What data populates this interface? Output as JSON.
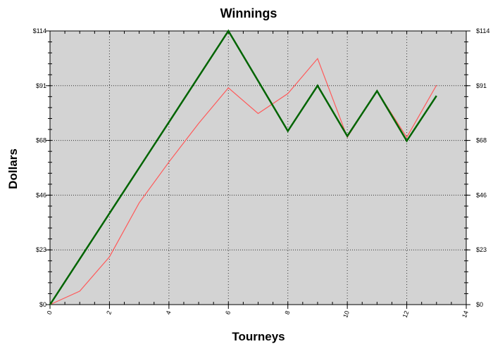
{
  "chart_data": {
    "type": "line",
    "title": "Winnings",
    "xlabel": "Tourneys",
    "ylabel": "Dollars",
    "xlim": [
      0,
      14
    ],
    "ylim": [
      0,
      114
    ],
    "xticks": [
      "0",
      "2",
      "4",
      "6",
      "8",
      "10",
      "12",
      "14"
    ],
    "yticks": [
      "$0",
      "$23",
      "$46",
      "$68",
      "$91",
      "$114"
    ],
    "ytick_values": [
      0,
      22.8,
      45.6,
      68.4,
      91.2,
      114
    ],
    "grid": true,
    "background": "#d3d3d3",
    "x": [
      0,
      1,
      2,
      3,
      4,
      5,
      6,
      7,
      8,
      9,
      10,
      11,
      12,
      13
    ],
    "series": [
      {
        "color": "#ff5a5a",
        "values": [
          0,
          5.6,
          19.9,
          42.4,
          59.4,
          75.5,
          90.3,
          79.6,
          87.9,
          102.5,
          69.7,
          89,
          69.7,
          91.4
        ]
      },
      {
        "color": "#006400",
        "values": [
          0,
          19,
          38,
          57,
          76,
          95,
          114,
          93.2,
          72.3,
          91.2,
          70.2,
          89,
          68.2,
          87
        ]
      }
    ]
  }
}
